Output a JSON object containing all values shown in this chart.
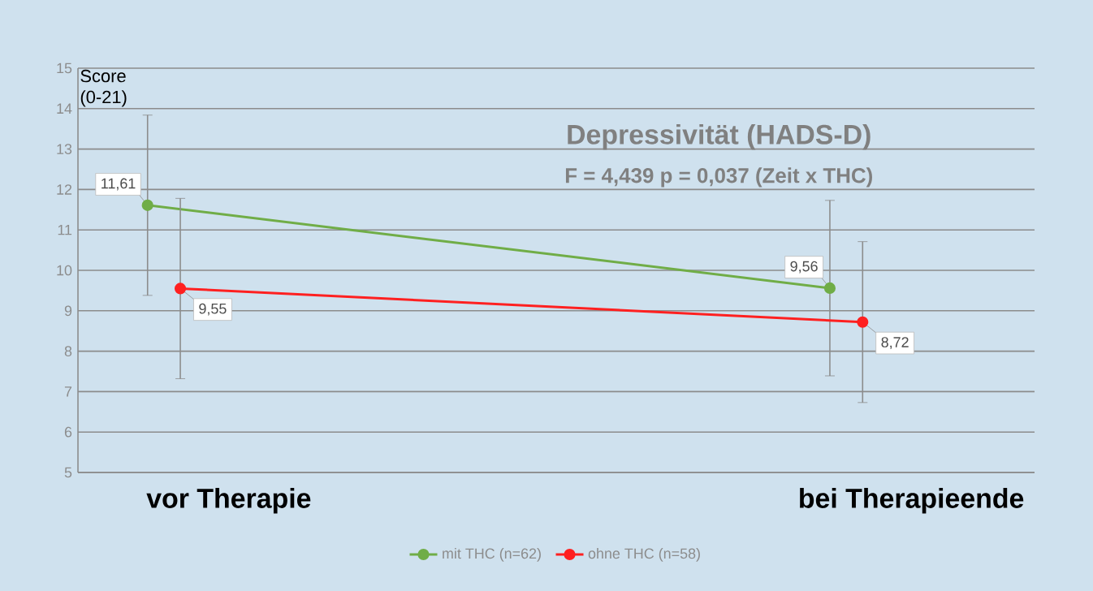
{
  "chart_data": {
    "type": "line",
    "title": "Depressivität (HADS-D)",
    "subtitle": "F = 4,439   p = 0,037 (Zeit x THC)",
    "ylabel": "Score (0-21)",
    "categories": [
      "vor Therapie",
      "bei Therapieende"
    ],
    "series": [
      {
        "name": "mit THC (n=62)",
        "color": "#70ad47",
        "values": [
          11.61,
          9.56
        ],
        "errors": [
          2.23,
          2.17
        ],
        "value_labels": [
          "11,61",
          "9,56"
        ]
      },
      {
        "name": "ohne THC (n=58)",
        "color": "#ff2020",
        "values": [
          9.55,
          8.72
        ],
        "errors": [
          2.23,
          1.99
        ],
        "value_labels": [
          "9,55",
          "8,72"
        ]
      }
    ],
    "ylim": [
      5,
      15
    ],
    "yticks": [
      5,
      6,
      7,
      8,
      9,
      10,
      11,
      12,
      13,
      14,
      15
    ],
    "grid": "y",
    "legend": "bottom",
    "marker": "circle",
    "line_style": "solid"
  }
}
